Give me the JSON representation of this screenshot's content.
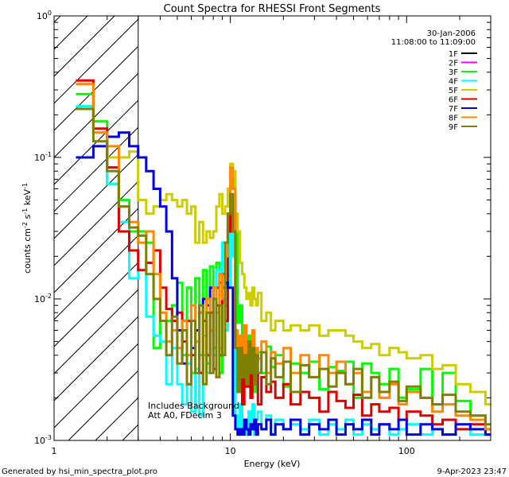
{
  "chart_data": {
    "type": "line",
    "title": "Count Spectra for RHESSI Front Segments",
    "xlabel": "Energy (keV)",
    "ylabel_parts": [
      "counts cm",
      "-2",
      " s",
      "-1",
      " keV",
      "-1"
    ],
    "x_scale": "log",
    "y_scale": "log",
    "xlim": [
      1,
      300
    ],
    "ylim": [
      0.001,
      1
    ],
    "x_ticks": [
      {
        "value": 1,
        "label": "1"
      },
      {
        "value": 10,
        "label": "10"
      },
      {
        "value": 100,
        "label": "100"
      }
    ],
    "y_ticks": [
      {
        "value": 0.001,
        "base": "10",
        "exp": "-3"
      },
      {
        "value": 0.01,
        "base": "10",
        "exp": "-2"
      },
      {
        "value": 0.1,
        "base": "10",
        "exp": "-1"
      },
      {
        "value": 1,
        "base": "10",
        "exp": "0"
      }
    ],
    "hatched_region_keV": [
      1,
      3
    ],
    "date": "30-Jan-2006",
    "time_range": "11:08:00 to 11:09:00",
    "notes": [
      "Includes Background",
      "Att A0, FDecim 3"
    ],
    "footer_left": "Generated by hsi_min_spectra_plot.pro",
    "footer_right": "9-Apr-2023 23:47",
    "series": [
      {
        "name": "1F",
        "color": "#000000",
        "values": []
      },
      {
        "name": "2F",
        "color": "#ff00ff",
        "values": []
      },
      {
        "name": "3F",
        "color": "#00ff00",
        "x": [
          1.33,
          1.67,
          2.0,
          2.33,
          2.67,
          3.0,
          3.33,
          3.67,
          4.0,
          4.33,
          4.67,
          5.0,
          5.33,
          5.67,
          6.0,
          6.33,
          6.67,
          7.0,
          7.33,
          7.67,
          8.0,
          8.33,
          8.67,
          9.0,
          9.33,
          9.67,
          10.0,
          10.33,
          10.67,
          11.0,
          11.33,
          11.67,
          12.0,
          12.33,
          12.67,
          13.0,
          13.33,
          13.67,
          14.0,
          14.33,
          15.0,
          16.0,
          17.0,
          18.0,
          20.0,
          22.0,
          25.0,
          28.0,
          32.0,
          36.0,
          40.0,
          45.0,
          50.0,
          56.0,
          63.0,
          70.0,
          80.0,
          90.0,
          100.0,
          120.0,
          140.0,
          160.0,
          190.0,
          230.0,
          280.0
        ],
        "y": [
          0.28,
          0.18,
          0.065,
          0.05,
          0.03,
          0.03,
          0.025,
          0.0045,
          0.008,
          0.007,
          0.009,
          0.013,
          0.004,
          0.012,
          0.003,
          0.014,
          0.004,
          0.016,
          0.0035,
          0.017,
          0.0045,
          0.018,
          0.003,
          0.025,
          0.009,
          0.015,
          0.06,
          0.07,
          0.03,
          0.0068,
          0.009,
          0.0028,
          0.0038,
          0.0035,
          0.0055,
          0.0028,
          0.0044,
          0.0022,
          0.0036,
          0.0042,
          0.003,
          0.0046,
          0.0033,
          0.004,
          0.0024,
          0.0035,
          0.003,
          0.0036,
          0.0023,
          0.0033,
          0.0031,
          0.0036,
          0.002,
          0.0035,
          0.003,
          0.0025,
          0.0032,
          0.002,
          0.0023,
          0.0032,
          0.0018,
          0.003,
          0.0019,
          0.0015,
          0.0012
        ]
      },
      {
        "name": "4F",
        "color": "#00ffff",
        "x": [
          1.33,
          1.67,
          2.0,
          2.33,
          2.67,
          3.0,
          3.33,
          3.67,
          4.0,
          4.33,
          4.67,
          5.0,
          5.33,
          5.67,
          6.0,
          6.33,
          6.67,
          7.0,
          7.33,
          7.67,
          8.0,
          8.33,
          8.67,
          9.0,
          9.33,
          9.67,
          10.0,
          10.33,
          10.67,
          11.0,
          11.33,
          11.67,
          12.0,
          12.33,
          12.67,
          13.0,
          13.33,
          13.67,
          14.0,
          14.33,
          15.0,
          16.0,
          17.0,
          18.0,
          20.0,
          22.0,
          25.0,
          28.0,
          32.0,
          36.0,
          40.0,
          45.0,
          50.0,
          56.0,
          63.0,
          70.0,
          80.0,
          90.0,
          100.0,
          120.0,
          140.0,
          160.0,
          190.0,
          230.0,
          280.0
        ],
        "y": [
          0.23,
          0.15,
          0.065,
          0.035,
          0.014,
          0.016,
          0.0075,
          0.0055,
          0.005,
          0.0025,
          0.0045,
          0.0025,
          0.0018,
          0.0035,
          0.0016,
          0.0032,
          0.0015,
          0.0055,
          0.003,
          0.012,
          0.004,
          0.016,
          0.0045,
          0.025,
          0.006,
          0.012,
          0.05,
          0.02,
          0.0015,
          0.0011,
          0.0018,
          0.0012,
          0.0014,
          0.0011,
          0.0016,
          0.0012,
          0.0018,
          0.0011,
          0.0014,
          0.0016,
          0.0012,
          0.0015,
          0.0011,
          0.0014,
          0.0012,
          0.0013,
          0.0012,
          0.0014,
          0.0011,
          0.0013,
          0.0012,
          0.0014,
          0.0011,
          0.0013,
          0.0012,
          0.0013,
          0.0011,
          0.0012,
          0.0013,
          0.0011,
          0.0012,
          0.0011,
          0.0012,
          0.0011,
          0.0011
        ]
      },
      {
        "name": "5F",
        "color": "#cccc00",
        "x": [
          1.33,
          1.67,
          2.0,
          2.33,
          2.67,
          3.0,
          3.33,
          3.67,
          4.0,
          4.33,
          4.67,
          5.0,
          5.33,
          5.67,
          6.0,
          6.33,
          6.67,
          7.0,
          7.33,
          7.67,
          8.0,
          8.33,
          8.67,
          9.0,
          9.33,
          9.67,
          10.0,
          10.33,
          10.67,
          11.0,
          11.33,
          11.67,
          12.0,
          12.33,
          12.67,
          13.0,
          13.33,
          13.67,
          14.0,
          14.33,
          15.0,
          16.0,
          17.0,
          18.0,
          20.0,
          22.0,
          25.0,
          28.0,
          32.0,
          36.0,
          40.0,
          45.0,
          50.0,
          56.0,
          63.0,
          70.0,
          80.0,
          90.0,
          100.0,
          120.0,
          140.0,
          160.0,
          190.0,
          230.0,
          280.0
        ],
        "y": [
          0.22,
          0.15,
          0.1,
          0.1,
          0.11,
          0.05,
          0.04,
          0.045,
          0.05,
          0.055,
          0.05,
          0.045,
          0.05,
          0.04,
          0.045,
          0.025,
          0.035,
          0.025,
          0.03,
          0.027,
          0.03,
          0.045,
          0.055,
          0.04,
          0.045,
          0.06,
          0.09,
          0.08,
          0.04,
          0.03,
          0.018,
          0.015,
          0.012,
          0.01,
          0.011,
          0.009,
          0.012,
          0.01,
          0.009,
          0.011,
          0.007,
          0.008,
          0.006,
          0.007,
          0.006,
          0.0065,
          0.006,
          0.0065,
          0.0055,
          0.006,
          0.006,
          0.0055,
          0.005,
          0.0045,
          0.0048,
          0.004,
          0.0045,
          0.0042,
          0.0038,
          0.004,
          0.0032,
          0.0034,
          0.0025,
          0.0022,
          0.0018
        ]
      },
      {
        "name": "6F",
        "color": "#dd0000",
        "x": [
          1.33,
          1.67,
          2.0,
          2.33,
          2.67,
          3.0,
          3.33,
          3.67,
          4.0,
          4.33,
          4.67,
          5.0,
          5.33,
          5.67,
          6.0,
          6.33,
          6.67,
          7.0,
          7.33,
          7.67,
          8.0,
          8.33,
          8.67,
          9.0,
          9.33,
          9.67,
          10.0,
          10.33,
          10.67,
          11.0,
          11.33,
          11.67,
          12.0,
          12.33,
          12.67,
          13.0,
          13.33,
          13.67,
          14.0,
          14.33,
          15.0,
          16.0,
          17.0,
          18.0,
          20.0,
          22.0,
          25.0,
          28.0,
          32.0,
          36.0,
          40.0,
          45.0,
          50.0,
          56.0,
          63.0,
          70.0,
          80.0,
          90.0,
          100.0,
          120.0,
          140.0,
          160.0,
          190.0,
          230.0,
          280.0
        ],
        "y": [
          0.35,
          0.16,
          0.085,
          0.03,
          0.022,
          0.016,
          0.018,
          0.022,
          0.012,
          0.0085,
          0.007,
          0.008,
          0.005,
          0.007,
          0.004,
          0.006,
          0.003,
          0.007,
          0.004,
          0.008,
          0.0032,
          0.009,
          0.004,
          0.012,
          0.007,
          0.03,
          0.04,
          0.03,
          0.0055,
          0.0022,
          0.004,
          0.0018,
          0.003,
          0.0024,
          0.0035,
          0.002,
          0.0032,
          0.0025,
          0.003,
          0.0018,
          0.0028,
          0.0022,
          0.0026,
          0.002,
          0.0025,
          0.0018,
          0.0022,
          0.002,
          0.0016,
          0.0022,
          0.0019,
          0.0017,
          0.0021,
          0.0015,
          0.0018,
          0.0016,
          0.0017,
          0.0014,
          0.0016,
          0.0015,
          0.0013,
          0.0014,
          0.0012,
          0.0013,
          0.0011
        ]
      },
      {
        "name": "7F",
        "color": "#0000dd",
        "x": [
          1.33,
          1.67,
          2.0,
          2.33,
          2.67,
          3.0,
          3.33,
          3.67,
          4.0,
          4.33,
          4.67,
          5.0,
          5.33,
          5.67,
          6.0,
          6.33,
          6.67,
          7.0,
          7.33,
          7.67,
          8.0,
          8.33,
          8.67,
          9.0,
          9.33,
          9.67,
          10.0,
          10.33,
          10.67,
          11.0,
          11.33,
          11.67,
          12.0,
          12.33,
          12.67,
          13.0,
          13.33,
          13.67,
          14.0,
          14.33,
          15.0,
          16.0,
          17.0,
          18.0,
          20.0,
          22.0,
          25.0,
          28.0,
          32.0,
          36.0,
          40.0,
          45.0,
          50.0,
          56.0,
          63.0,
          70.0,
          80.0,
          90.0,
          100.0,
          120.0,
          140.0,
          160.0,
          190.0,
          230.0,
          280.0
        ],
        "y": [
          0.1,
          0.12,
          0.14,
          0.15,
          0.12,
          0.1,
          0.08,
          0.06,
          0.045,
          0.03,
          0.014,
          0.006,
          0.0035,
          0.0025,
          0.0045,
          0.006,
          0.008,
          0.01,
          0.009,
          0.012,
          0.01,
          0.012,
          0.013,
          0.015,
          0.013,
          0.012,
          0.012,
          0.0015,
          0.0012,
          0.0011,
          0.0012,
          0.0011,
          0.0014,
          0.0012,
          0.0011,
          0.0013,
          0.0012,
          0.0014,
          0.0011,
          0.0013,
          0.0012,
          0.0014,
          0.0011,
          0.0013,
          0.0012,
          0.0014,
          0.0011,
          0.0013,
          0.0012,
          0.0014,
          0.0011,
          0.0013,
          0.0012,
          0.0014,
          0.0011,
          0.0013,
          0.0012,
          0.0014,
          0.0011,
          0.0013,
          0.0012,
          0.0011,
          0.0013,
          0.0012,
          0.0011
        ]
      },
      {
        "name": "8F",
        "color": "#ff8800",
        "x": [
          1.33,
          1.67,
          2.0,
          2.33,
          2.67,
          3.0,
          3.33,
          3.67,
          4.0,
          4.33,
          4.67,
          5.0,
          5.33,
          5.67,
          6.0,
          6.33,
          6.67,
          7.0,
          7.33,
          7.67,
          8.0,
          8.33,
          8.67,
          9.0,
          9.33,
          9.67,
          10.0,
          10.33,
          10.67,
          11.0,
          11.33,
          11.67,
          12.0,
          12.33,
          12.67,
          13.0,
          13.33,
          13.67,
          14.0,
          14.33,
          15.0,
          16.0,
          17.0,
          18.0,
          20.0,
          22.0,
          25.0,
          28.0,
          32.0,
          36.0,
          40.0,
          45.0,
          50.0,
          56.0,
          63.0,
          70.0,
          80.0,
          90.0,
          100.0,
          120.0,
          140.0,
          160.0,
          190.0,
          230.0,
          280.0
        ],
        "y": [
          0.33,
          0.15,
          0.12,
          0.045,
          0.035,
          0.025,
          0.03,
          0.015,
          0.008,
          0.005,
          0.006,
          0.0045,
          0.007,
          0.004,
          0.009,
          0.005,
          0.008,
          0.004,
          0.01,
          0.006,
          0.012,
          0.008,
          0.015,
          0.01,
          0.02,
          0.04,
          0.085,
          0.06,
          0.006,
          0.0035,
          0.0055,
          0.003,
          0.0065,
          0.0035,
          0.005,
          0.004,
          0.006,
          0.003,
          0.0045,
          0.0038,
          0.005,
          0.003,
          0.0042,
          0.0035,
          0.0045,
          0.003,
          0.004,
          0.0028,
          0.004,
          0.003,
          0.0036,
          0.0025,
          0.003,
          0.0022,
          0.0028,
          0.002,
          0.0025,
          0.0018,
          0.0022,
          0.002,
          0.0016,
          0.0018,
          0.0015,
          0.0014,
          0.0012
        ]
      },
      {
        "name": "9F",
        "color": "#808000",
        "x": [
          1.33,
          1.67,
          2.0,
          2.33,
          2.67,
          3.0,
          3.33,
          3.67,
          4.0,
          4.33,
          4.67,
          5.0,
          5.33,
          5.67,
          6.0,
          6.33,
          6.67,
          7.0,
          7.33,
          7.67,
          8.0,
          8.33,
          8.67,
          9.0,
          9.33,
          9.67,
          10.0,
          10.33,
          10.67,
          11.0,
          11.33,
          11.67,
          12.0,
          12.33,
          12.67,
          13.0,
          13.33,
          13.67,
          14.0,
          14.33,
          15.0,
          16.0,
          17.0,
          18.0,
          20.0,
          22.0,
          25.0,
          28.0,
          32.0,
          36.0,
          40.0,
          45.0,
          50.0,
          56.0,
          63.0,
          70.0,
          80.0,
          90.0,
          100.0,
          120.0,
          140.0,
          160.0,
          190.0,
          230.0,
          280.0
        ],
        "y": [
          0.22,
          0.13,
          0.08,
          0.045,
          0.032,
          0.028,
          0.015,
          0.01,
          0.007,
          0.004,
          0.0075,
          0.0035,
          0.006,
          0.0025,
          0.007,
          0.003,
          0.009,
          0.0025,
          0.008,
          0.003,
          0.01,
          0.0028,
          0.009,
          0.004,
          0.025,
          0.04,
          0.055,
          0.03,
          0.0045,
          0.0022,
          0.0045,
          0.0028,
          0.004,
          0.0025,
          0.005,
          0.003,
          0.0045,
          0.0025,
          0.004,
          0.003,
          0.0042,
          0.0025,
          0.0038,
          0.0028,
          0.0036,
          0.0022,
          0.0034,
          0.0028,
          0.0032,
          0.0024,
          0.003,
          0.0025,
          0.0032,
          0.002,
          0.0028,
          0.0022,
          0.0026,
          0.0019,
          0.0024,
          0.002,
          0.0018,
          0.0021,
          0.0016,
          0.0015,
          0.0013
        ]
      }
    ]
  }
}
